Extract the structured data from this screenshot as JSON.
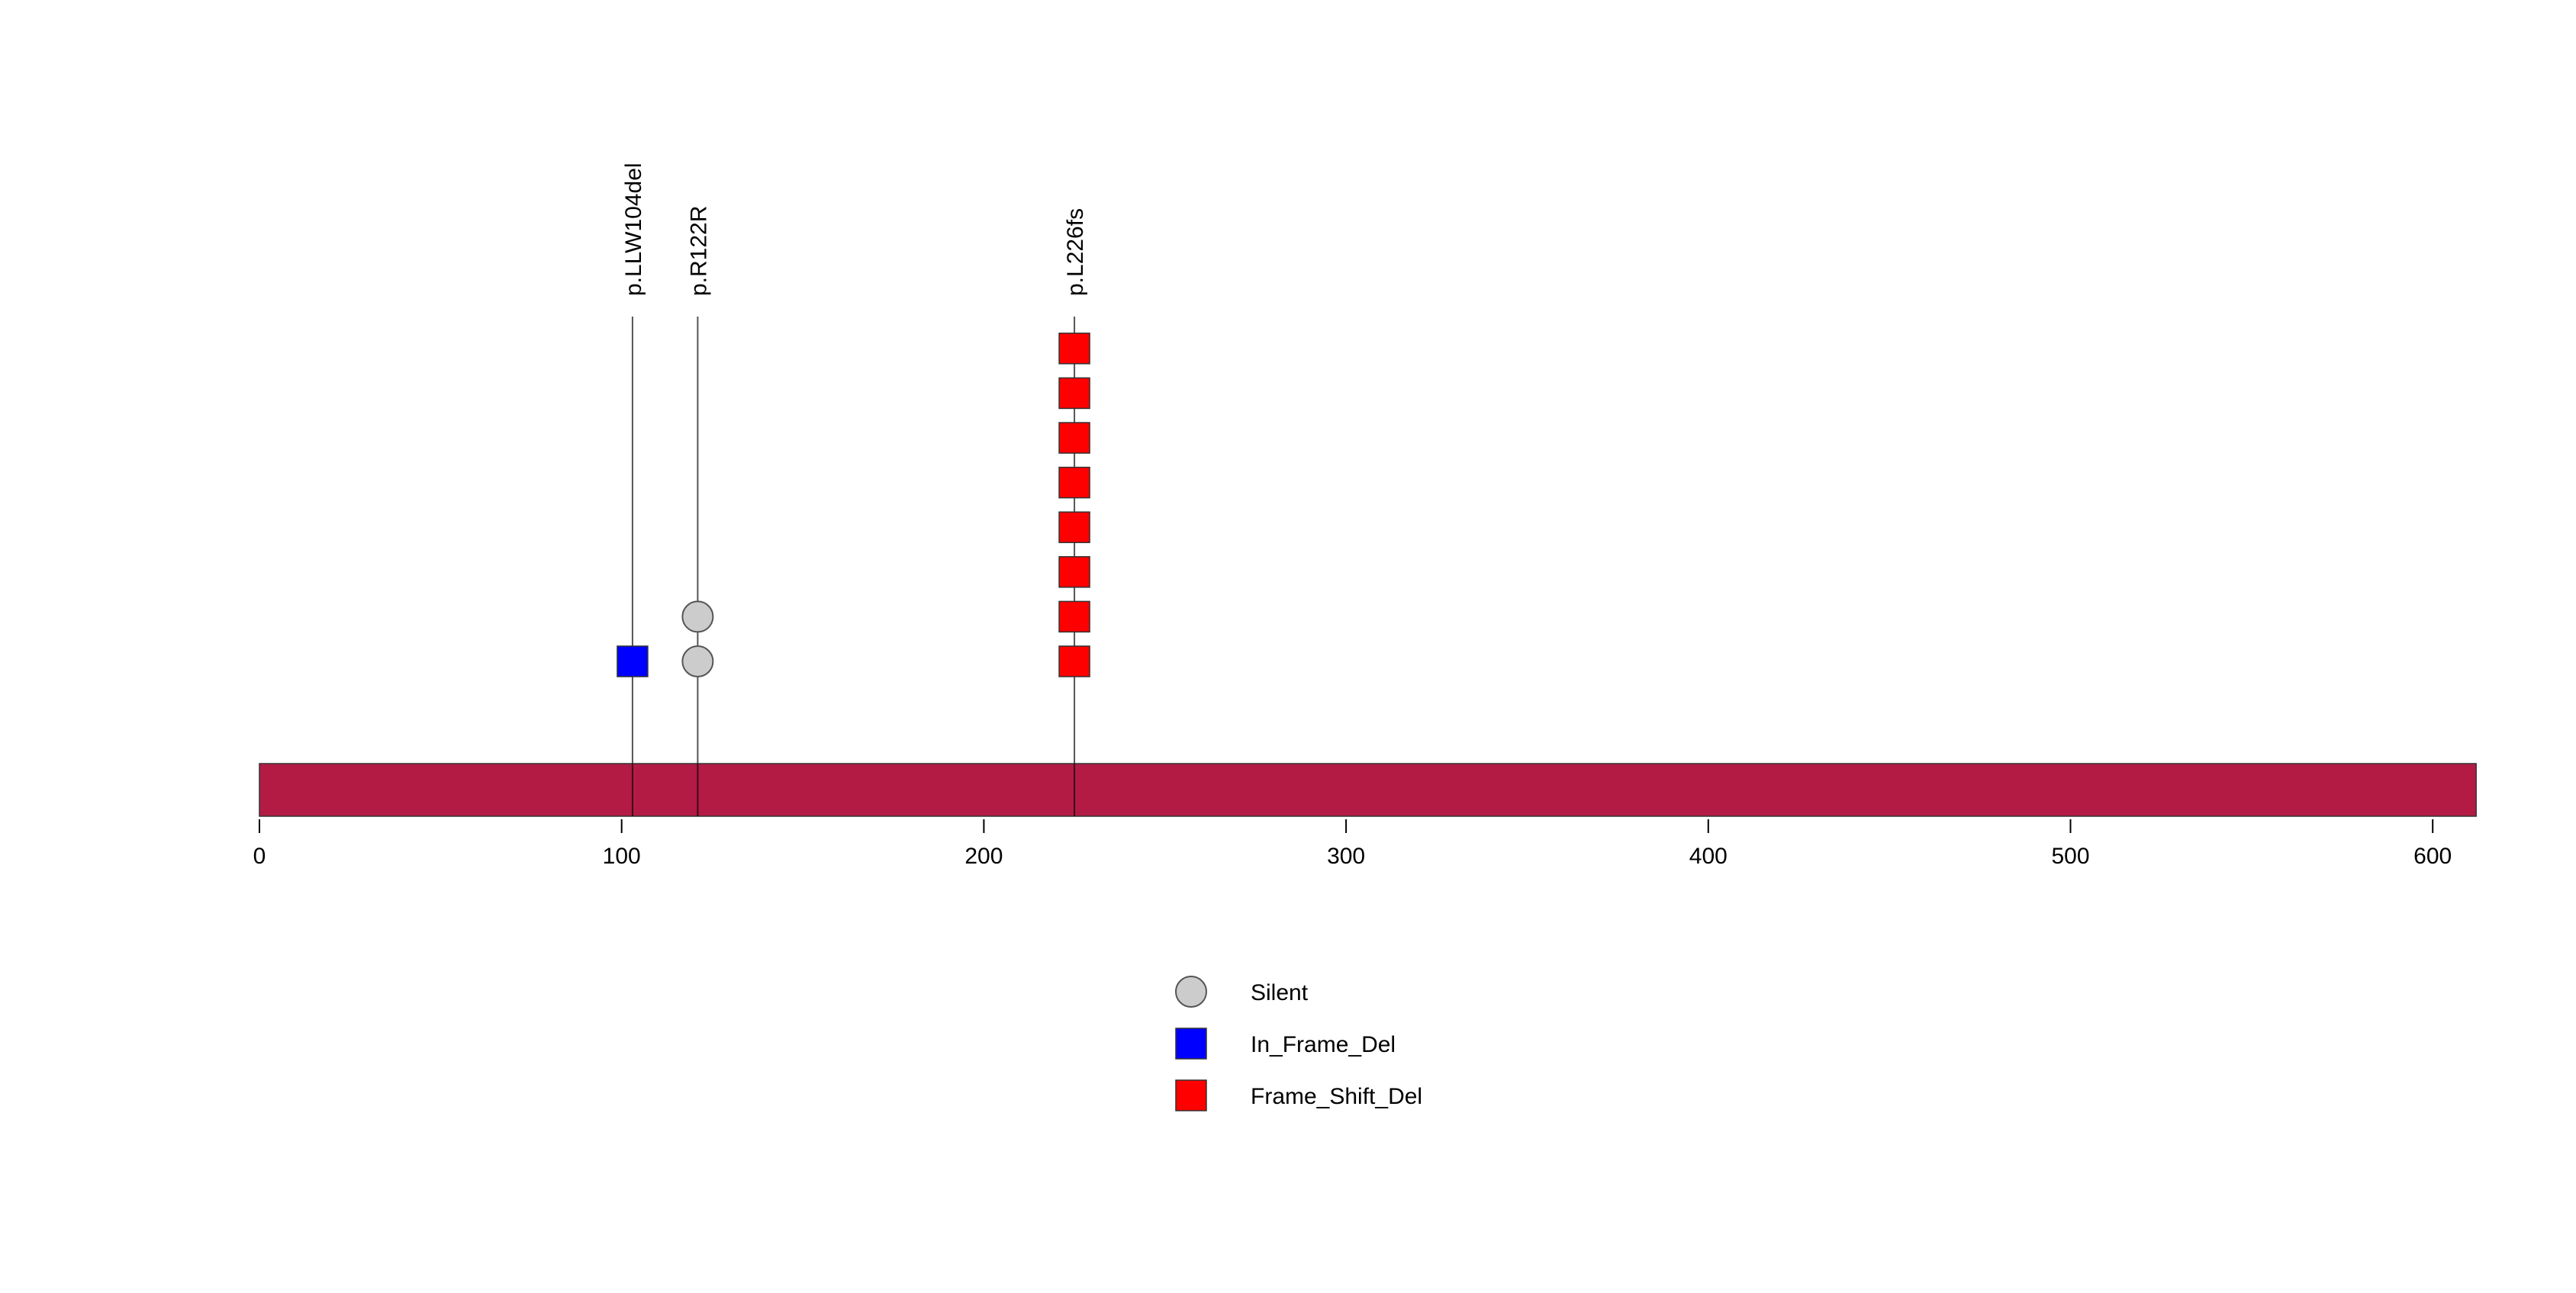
{
  "chart_data": {
    "type": "lollipop",
    "title": "",
    "xlabel": "",
    "ylabel": "",
    "xlim": [
      0,
      612
    ],
    "x_ticks": [
      0,
      100,
      200,
      300,
      400,
      500,
      600
    ],
    "grid": false,
    "protein_bar": {
      "start": 0,
      "end": 612,
      "color": "#B31B45"
    },
    "mutations": [
      {
        "label": "p.LLW104del",
        "position": 103,
        "type": "In_Frame_Del",
        "count": 1
      },
      {
        "label": "p.R122R",
        "position": 121,
        "type": "Silent",
        "count": 2
      },
      {
        "label": "p.L226fs",
        "position": 225,
        "type": "Frame_Shift_Del",
        "count": 8
      }
    ],
    "legend": {
      "placement": "bottom-center",
      "entries": [
        {
          "name": "Silent",
          "shape": "circle",
          "color": "#CCCCCC"
        },
        {
          "name": "In_Frame_Del",
          "shape": "square",
          "color": "#0000FF"
        },
        {
          "name": "Frame_Shift_Del",
          "shape": "square",
          "color": "#FF0000"
        }
      ]
    }
  }
}
